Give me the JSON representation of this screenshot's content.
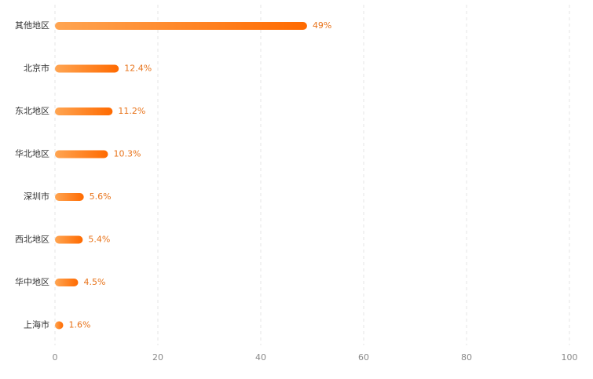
{
  "chart_data": {
    "type": "bar",
    "orientation": "horizontal",
    "categories": [
      "其他地区",
      "北京市",
      "东北地区",
      "华北地区",
      "深圳市",
      "西北地区",
      "华中地区",
      "上海市"
    ],
    "values": [
      49,
      12.4,
      11.2,
      10.3,
      5.6,
      5.4,
      4.5,
      1.6
    ],
    "value_labels": [
      "49%",
      "12.4%",
      "11.2%",
      "10.3%",
      "5.6%",
      "5.4%",
      "4.5%",
      "1.6%"
    ],
    "colors": [
      "#ffa552",
      "#ff6a00"
    ],
    "xlim": [
      0,
      100
    ],
    "xticks": [
      0,
      20,
      40,
      60,
      80,
      100
    ],
    "grid": true
  }
}
